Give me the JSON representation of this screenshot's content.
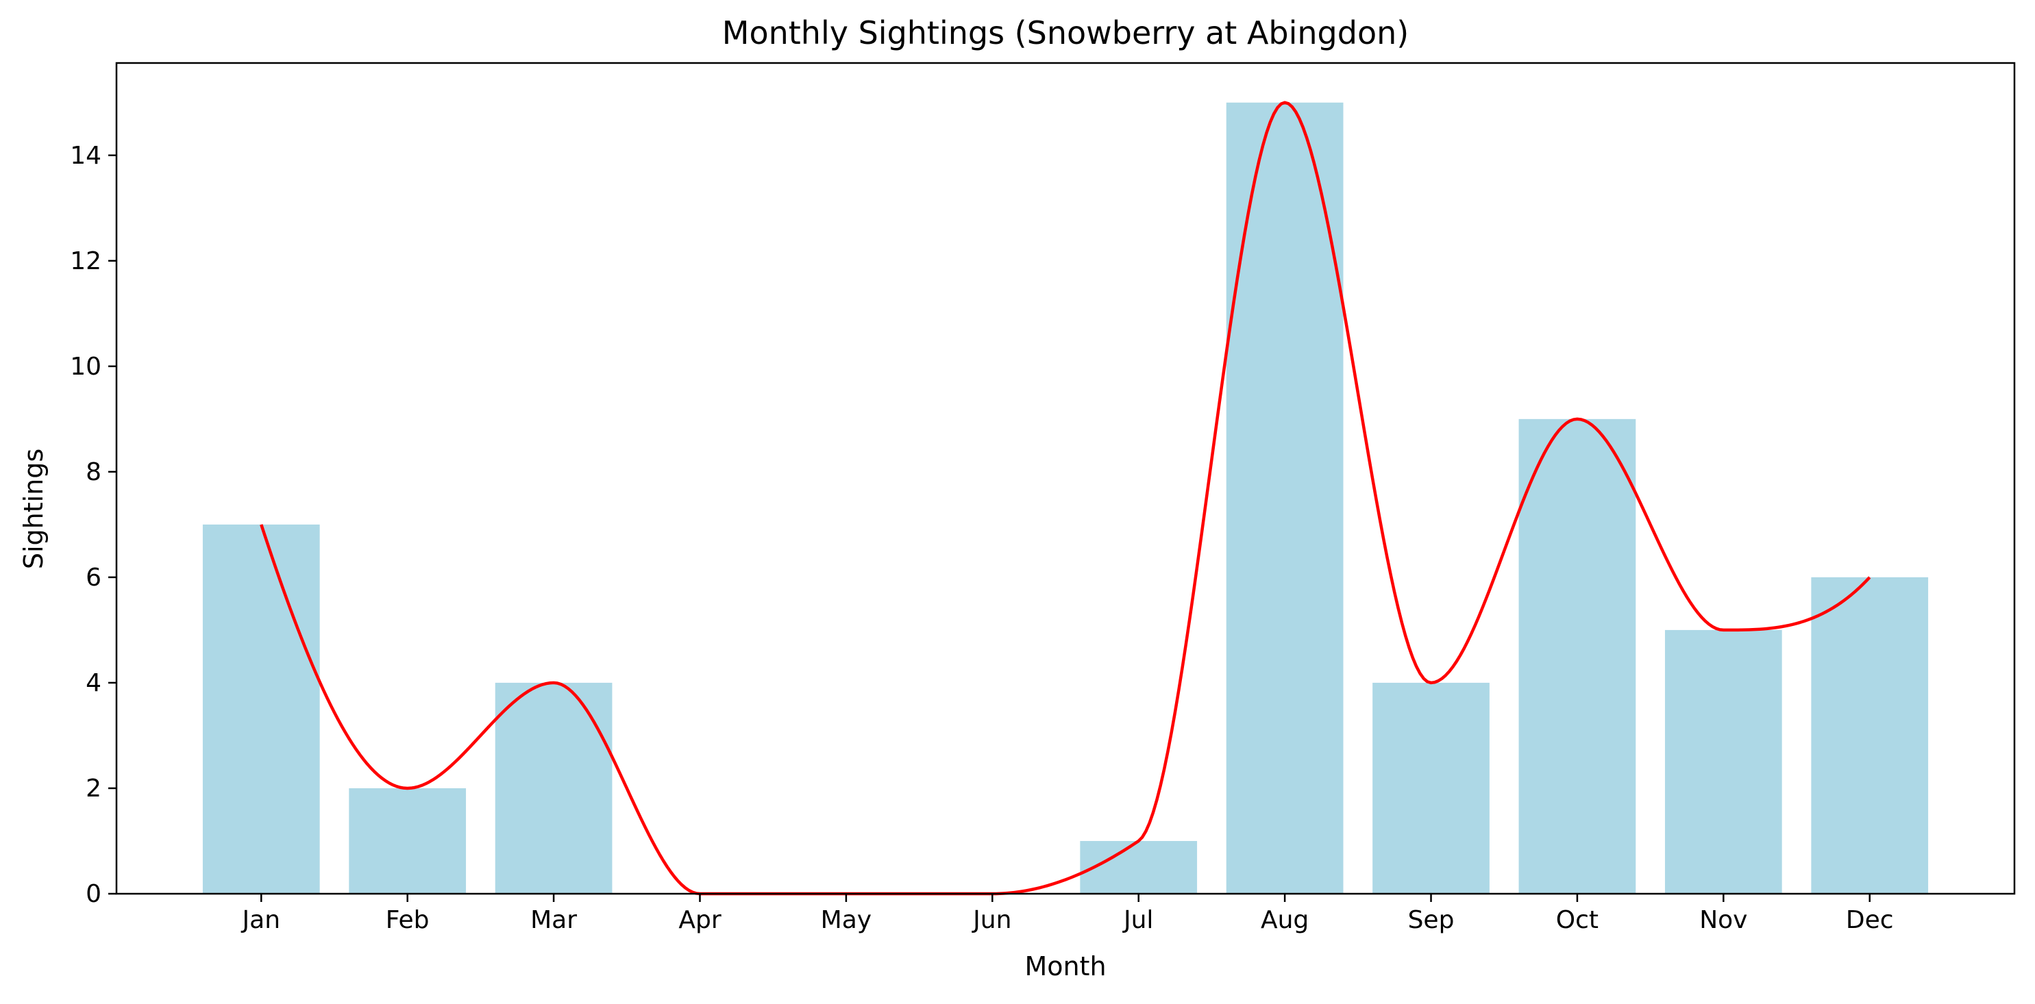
{
  "chart_data": {
    "type": "bar",
    "title": "Monthly Sightings (Snowberry at Abingdon)",
    "xlabel": "Month",
    "ylabel": "Sightings",
    "categories": [
      "Jan",
      "Feb",
      "Mar",
      "Apr",
      "May",
      "Jun",
      "Jul",
      "Aug",
      "Sep",
      "Oct",
      "Nov",
      "Dec"
    ],
    "values": [
      7,
      2,
      4,
      0,
      0,
      0,
      1,
      15,
      4,
      9,
      5,
      6
    ],
    "ylim": [
      0,
      15.75
    ],
    "yticks": [
      0,
      2,
      4,
      6,
      8,
      10,
      12,
      14
    ],
    "grid": false,
    "legend": "none",
    "bar_color": "#add8e6",
    "overlay": {
      "type": "line",
      "style": "smoothed curve through bar tops",
      "color": "#ff0000"
    }
  }
}
